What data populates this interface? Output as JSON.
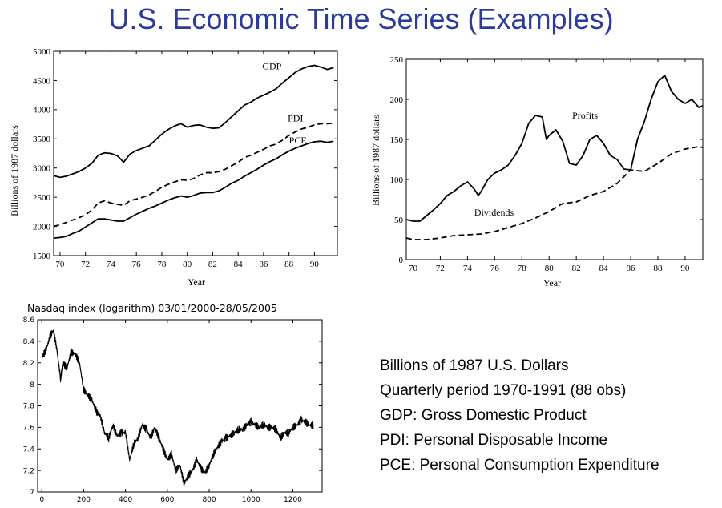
{
  "slide": {
    "title": "U.S. Economic Time Series (Examples)",
    "notes": [
      "Billions of 1987 U.S. Dollars",
      "Quarterly period 1970-1991 (88 obs)",
      "GDP: Gross Domestic Product",
      "PDI: Personal Disposable Income",
      "PCE: Personal Consumption Expenditure"
    ]
  },
  "chart_data": [
    {
      "type": "line",
      "title": "",
      "xlabel": "Year",
      "ylabel": "Billions of 1987 dollars",
      "xlim": [
        69.5,
        91.8
      ],
      "ylim": [
        1500,
        5000
      ],
      "xticks": [
        70,
        72,
        74,
        76,
        78,
        80,
        82,
        84,
        86,
        88,
        90
      ],
      "yticks": [
        1500,
        2000,
        2500,
        3000,
        3500,
        4000,
        4500,
        5000
      ],
      "grid": false,
      "series": [
        {
          "name": "GDP",
          "style": "solid",
          "label_at": [
            85.9,
            4690
          ],
          "x": [
            69.5,
            70,
            70.5,
            71,
            71.5,
            72,
            72.5,
            73,
            73.5,
            74,
            74.5,
            75,
            75.5,
            76,
            76.5,
            77,
            77.5,
            78,
            78.5,
            79,
            79.5,
            80,
            80.5,
            81,
            81.5,
            82,
            82.5,
            83,
            83.5,
            84,
            84.5,
            85,
            85.5,
            86,
            86.5,
            87,
            87.5,
            88,
            88.5,
            89,
            89.5,
            90,
            90.5,
            91,
            91.5
          ],
          "values": [
            2870,
            2840,
            2860,
            2900,
            2940,
            3000,
            3080,
            3220,
            3260,
            3250,
            3210,
            3100,
            3240,
            3300,
            3340,
            3380,
            3480,
            3580,
            3660,
            3720,
            3760,
            3700,
            3730,
            3740,
            3700,
            3680,
            3690,
            3780,
            3880,
            3980,
            4080,
            4130,
            4200,
            4250,
            4300,
            4360,
            4460,
            4550,
            4640,
            4700,
            4740,
            4760,
            4730,
            4690,
            4720
          ]
        },
        {
          "name": "PDI",
          "style": "dashed",
          "label_at": [
            87.9,
            3800
          ],
          "x": [
            69.5,
            70,
            70.5,
            71,
            71.5,
            72,
            72.5,
            73,
            73.5,
            74,
            74.5,
            75,
            75.5,
            76,
            76.5,
            77,
            77.5,
            78,
            78.5,
            79,
            79.5,
            80,
            80.5,
            81,
            81.5,
            82,
            82.5,
            83,
            83.5,
            84,
            84.5,
            85,
            85.5,
            86,
            86.5,
            87,
            87.5,
            88,
            88.5,
            89,
            89.5,
            90,
            90.5,
            91,
            91.5
          ],
          "values": [
            2000,
            2030,
            2070,
            2110,
            2150,
            2200,
            2280,
            2400,
            2440,
            2400,
            2380,
            2360,
            2440,
            2470,
            2500,
            2540,
            2600,
            2670,
            2720,
            2760,
            2800,
            2790,
            2820,
            2880,
            2920,
            2920,
            2940,
            2980,
            3040,
            3100,
            3180,
            3220,
            3270,
            3320,
            3380,
            3410,
            3480,
            3560,
            3620,
            3670,
            3700,
            3740,
            3760,
            3760,
            3770
          ]
        },
        {
          "name": "PCE",
          "style": "solid",
          "label_at": [
            88.0,
            3420
          ],
          "x": [
            69.5,
            70,
            70.5,
            71,
            71.5,
            72,
            72.5,
            73,
            73.5,
            74,
            74.5,
            75,
            75.5,
            76,
            76.5,
            77,
            77.5,
            78,
            78.5,
            79,
            79.5,
            80,
            80.5,
            81,
            81.5,
            82,
            82.5,
            83,
            83.5,
            84,
            84.5,
            85,
            85.5,
            86,
            86.5,
            87,
            87.5,
            88,
            88.5,
            89,
            89.5,
            90,
            90.5,
            91,
            91.5
          ],
          "values": [
            1800,
            1810,
            1830,
            1880,
            1920,
            1990,
            2060,
            2130,
            2130,
            2110,
            2090,
            2090,
            2150,
            2210,
            2260,
            2310,
            2350,
            2400,
            2450,
            2490,
            2520,
            2500,
            2530,
            2570,
            2580,
            2580,
            2610,
            2670,
            2740,
            2790,
            2860,
            2920,
            2980,
            3050,
            3110,
            3160,
            3230,
            3290,
            3340,
            3380,
            3420,
            3450,
            3460,
            3440,
            3460
          ]
        }
      ]
    },
    {
      "type": "line",
      "title": "",
      "xlabel": "Year",
      "ylabel": "Billions of 1987 dollars",
      "xlim": [
        69.5,
        91.3
      ],
      "ylim": [
        0,
        250
      ],
      "xticks": [
        70,
        72,
        74,
        76,
        78,
        80,
        82,
        84,
        86,
        88,
        90
      ],
      "yticks": [
        0,
        50,
        100,
        150,
        200,
        250
      ],
      "grid": false,
      "series": [
        {
          "name": "Profits",
          "style": "solid",
          "label_at": [
            81.7,
            176
          ],
          "x": [
            69.5,
            70,
            70.5,
            71,
            71.5,
            72,
            72.5,
            73,
            73.5,
            74,
            74.5,
            74.8,
            75,
            75.5,
            76,
            76.5,
            77,
            77.5,
            78,
            78.5,
            79,
            79.5,
            79.8,
            80,
            80.5,
            81,
            81.5,
            82,
            82.5,
            83,
            83.5,
            84,
            84.5,
            85,
            85.5,
            86,
            86.5,
            87,
            87.5,
            88,
            88.5,
            89,
            89.5,
            90,
            90.5,
            91,
            91.3
          ],
          "values": [
            50,
            48,
            48,
            55,
            62,
            70,
            80,
            85,
            92,
            97,
            88,
            80,
            85,
            100,
            108,
            112,
            118,
            130,
            145,
            170,
            180,
            178,
            150,
            155,
            162,
            148,
            120,
            118,
            130,
            150,
            155,
            145,
            130,
            125,
            113,
            112,
            150,
            172,
            200,
            222,
            230,
            210,
            200,
            195,
            200,
            190,
            192
          ]
        },
        {
          "name": "Dividends",
          "style": "dashed",
          "label_at": [
            74.5,
            55
          ],
          "x": [
            69.5,
            70,
            71,
            72,
            73,
            74,
            75,
            76,
            77,
            78,
            79,
            80,
            81,
            82,
            83,
            84,
            85,
            86,
            87,
            88,
            89,
            90,
            91,
            91.3
          ],
          "values": [
            27,
            25,
            25,
            27,
            30,
            31,
            32,
            35,
            40,
            45,
            52,
            60,
            70,
            72,
            80,
            85,
            95,
            112,
            110,
            120,
            132,
            138,
            141,
            140
          ]
        }
      ]
    },
    {
      "type": "line",
      "title": "Nasdaq index (logarithm) 03/01/2000-28/05/2005",
      "xlabel": "",
      "ylabel": "",
      "xlim": [
        -20,
        1340
      ],
      "ylim": [
        7.0,
        8.6
      ],
      "xticks": [
        0,
        200,
        400,
        600,
        800,
        1000,
        1200
      ],
      "yticks": [
        7,
        7.2,
        7.4,
        7.6,
        7.8,
        8,
        8.2,
        8.4,
        8.6
      ],
      "ytick_labels": [
        "7",
        "7.2",
        "7.4",
        "7.6",
        "7.8",
        "8",
        "8.2",
        "8.4",
        "8.6"
      ],
      "grid": false,
      "series": [
        {
          "name": "",
          "style": "solid",
          "x": [
            0,
            20,
            40,
            55,
            70,
            90,
            100,
            120,
            140,
            160,
            180,
            200,
            220,
            240,
            260,
            280,
            300,
            320,
            340,
            360,
            380,
            400,
            420,
            440,
            460,
            480,
            500,
            520,
            540,
            560,
            580,
            600,
            620,
            640,
            660,
            680,
            700,
            720,
            740,
            760,
            780,
            800,
            820,
            840,
            860,
            880,
            900,
            920,
            940,
            960,
            980,
            1000,
            1020,
            1040,
            1060,
            1080,
            1100,
            1120,
            1140,
            1160,
            1180,
            1200,
            1220,
            1240,
            1260,
            1280,
            1300
          ],
          "values": [
            8.25,
            8.32,
            8.45,
            8.5,
            8.35,
            8.05,
            8.2,
            8.15,
            8.3,
            8.28,
            8.2,
            7.95,
            7.9,
            7.85,
            7.75,
            7.7,
            7.55,
            7.5,
            7.62,
            7.52,
            7.55,
            7.55,
            7.3,
            7.45,
            7.5,
            7.62,
            7.58,
            7.5,
            7.6,
            7.5,
            7.4,
            7.3,
            7.35,
            7.2,
            7.25,
            7.08,
            7.15,
            7.2,
            7.3,
            7.22,
            7.18,
            7.25,
            7.35,
            7.42,
            7.47,
            7.5,
            7.52,
            7.55,
            7.58,
            7.58,
            7.62,
            7.65,
            7.62,
            7.6,
            7.63,
            7.6,
            7.6,
            7.58,
            7.5,
            7.55,
            7.55,
            7.6,
            7.62,
            7.67,
            7.65,
            7.62,
            7.62
          ]
        }
      ]
    }
  ]
}
